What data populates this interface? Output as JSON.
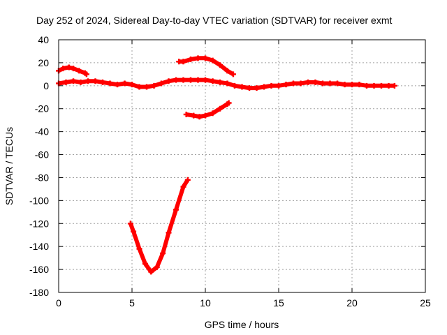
{
  "chart_data": {
    "type": "scatter",
    "title": "Day 252 of 2024, Sidereal Day-to-day VTEC variation (SDTVAR) for receiver exmt",
    "xlabel": "GPS time / hours",
    "ylabel": "SDTVAR / TECUs",
    "xlim": [
      0,
      25
    ],
    "ylim": [
      -180,
      40
    ],
    "xticks": [
      0,
      5,
      10,
      15,
      20,
      25
    ],
    "yticks": [
      40,
      20,
      0,
      -20,
      -40,
      -60,
      -80,
      -100,
      -120,
      -140,
      -160,
      -180
    ],
    "grid": true,
    "marker": "+",
    "color": "#ff0000",
    "series": [
      {
        "name": "track-main",
        "points": [
          [
            0.0,
            2
          ],
          [
            0.5,
            3
          ],
          [
            1.0,
            4
          ],
          [
            1.5,
            3
          ],
          [
            2.0,
            4
          ],
          [
            2.5,
            4
          ],
          [
            3.0,
            3
          ],
          [
            3.5,
            2
          ],
          [
            4.0,
            1
          ],
          [
            4.5,
            2
          ],
          [
            5.0,
            1
          ],
          [
            5.5,
            -1
          ],
          [
            6.0,
            -1
          ],
          [
            6.5,
            0
          ],
          [
            7.0,
            2
          ],
          [
            7.5,
            4
          ],
          [
            8.0,
            5
          ],
          [
            8.5,
            5
          ],
          [
            9.0,
            5
          ],
          [
            9.5,
            5
          ],
          [
            10.0,
            5
          ],
          [
            10.5,
            4
          ],
          [
            11.0,
            3
          ],
          [
            11.5,
            2
          ],
          [
            12.0,
            0
          ],
          [
            12.5,
            -1
          ],
          [
            13.0,
            -2
          ],
          [
            13.5,
            -2
          ],
          [
            14.0,
            -1
          ],
          [
            14.5,
            0
          ],
          [
            15.0,
            0
          ],
          [
            15.5,
            1
          ],
          [
            16.0,
            2
          ],
          [
            16.5,
            2
          ],
          [
            17.0,
            3
          ],
          [
            17.5,
            3
          ],
          [
            18.0,
            2
          ],
          [
            18.5,
            2
          ],
          [
            19.0,
            2
          ],
          [
            19.5,
            1
          ],
          [
            20.0,
            1
          ],
          [
            20.5,
            1
          ],
          [
            21.0,
            0
          ],
          [
            21.5,
            0
          ],
          [
            22.0,
            0
          ],
          [
            22.5,
            0
          ],
          [
            22.9,
            0
          ]
        ]
      },
      {
        "name": "track-early",
        "points": [
          [
            0.0,
            13
          ],
          [
            0.3,
            15
          ],
          [
            0.7,
            16
          ],
          [
            1.0,
            15
          ],
          [
            1.4,
            13
          ],
          [
            1.8,
            11
          ],
          [
            1.9,
            10
          ]
        ]
      },
      {
        "name": "track-upper",
        "points": [
          [
            8.2,
            21
          ],
          [
            8.5,
            21
          ],
          [
            9.0,
            23
          ],
          [
            9.5,
            24
          ],
          [
            10.0,
            24
          ],
          [
            10.5,
            22
          ],
          [
            11.0,
            18
          ],
          [
            11.5,
            13
          ],
          [
            11.9,
            10
          ]
        ]
      },
      {
        "name": "track-lower",
        "points": [
          [
            8.7,
            -25
          ],
          [
            9.2,
            -26
          ],
          [
            9.6,
            -27
          ],
          [
            10.0,
            -26
          ],
          [
            10.5,
            -24
          ],
          [
            11.0,
            -20
          ],
          [
            11.5,
            -16
          ],
          [
            11.6,
            -15
          ]
        ]
      },
      {
        "name": "track-deep",
        "points": [
          [
            4.9,
            -120
          ],
          [
            5.1,
            -127
          ],
          [
            5.5,
            -142
          ],
          [
            5.9,
            -155
          ],
          [
            6.3,
            -162
          ],
          [
            6.7,
            -158
          ],
          [
            7.1,
            -146
          ],
          [
            7.5,
            -128
          ],
          [
            8.0,
            -108
          ],
          [
            8.5,
            -88
          ],
          [
            8.8,
            -82
          ]
        ]
      }
    ]
  }
}
